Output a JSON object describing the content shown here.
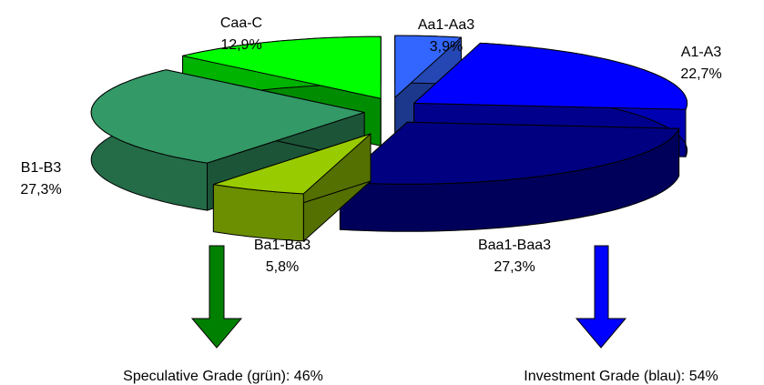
{
  "chart_data": {
    "type": "pie3d",
    "categories": [
      "Aa1-Aa3",
      "A1-A3",
      "Baa1-Baa3",
      "Ba1-Ba3",
      "B1-B3",
      "Caa-C"
    ],
    "values": [
      3.9,
      22.7,
      27.3,
      5.8,
      27.3,
      12.9
    ],
    "value_labels": [
      "3,9%",
      "22,7%",
      "27,3%",
      "5,8%",
      "27,3%",
      "12,9%"
    ],
    "colors": [
      "#3366ff",
      "#0000ff",
      "#000080",
      "#99cc00",
      "#339966",
      "#00ff00"
    ],
    "annotations": [
      "Speculative Grade (grün): 46%",
      "Investment Grade (blau): 54%"
    ]
  }
}
